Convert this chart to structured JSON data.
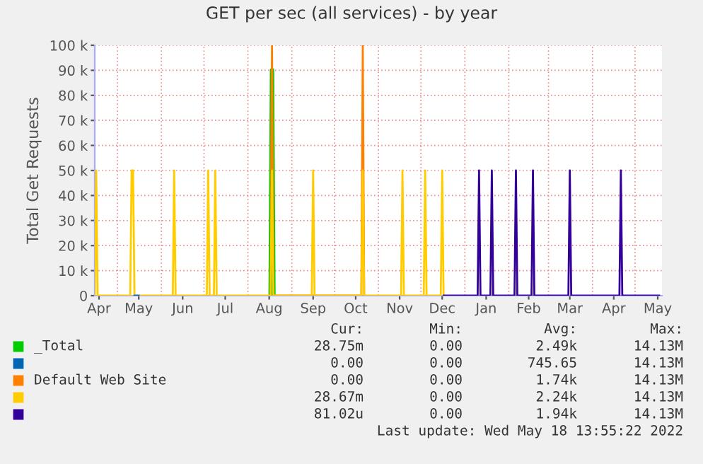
{
  "chart_data": {
    "type": "line",
    "title": "GET per sec (all services) - by year",
    "ylabel": "Total Get Requests",
    "xlim": [
      "2021-04-15",
      "2022-05-20"
    ],
    "xticks": [
      {
        "value": "2021-04-18",
        "label": "Apr"
      },
      {
        "value": "2021-05-16",
        "label": "May"
      },
      {
        "value": "2021-06-16",
        "label": "Jun"
      },
      {
        "value": "2021-07-16",
        "label": "Jul"
      },
      {
        "value": "2021-08-16",
        "label": "Aug"
      },
      {
        "value": "2021-09-16",
        "label": "Sep"
      },
      {
        "value": "2021-10-16",
        "label": "Oct"
      },
      {
        "value": "2021-11-16",
        "label": "Nov"
      },
      {
        "value": "2021-12-16",
        "label": "Dec"
      },
      {
        "value": "2022-01-16",
        "label": "Jan"
      },
      {
        "value": "2022-02-15",
        "label": "Feb"
      },
      {
        "value": "2022-03-16",
        "label": "Mar"
      },
      {
        "value": "2022-04-16",
        "label": "Apr"
      },
      {
        "value": "2022-05-17",
        "label": "May"
      },
      {
        "value": "2021-05-01",
        "label": null
      },
      {
        "value": "2021-06-01",
        "label": null
      },
      {
        "value": "2021-07-01",
        "label": null
      },
      {
        "value": "2021-08-01",
        "label": null
      },
      {
        "value": "2021-09-01",
        "label": null
      },
      {
        "value": "2021-10-01",
        "label": null
      },
      {
        "value": "2021-11-01",
        "label": null
      },
      {
        "value": "2021-12-01",
        "label": null
      },
      {
        "value": "2022-01-01",
        "label": null
      },
      {
        "value": "2022-02-01",
        "label": null
      },
      {
        "value": "2022-03-01",
        "label": null
      },
      {
        "value": "2022-04-01",
        "label": null
      },
      {
        "value": "2022-05-01",
        "label": null
      }
    ],
    "ylim": [
      0,
      100000
    ],
    "yticks": [
      {
        "value": 0,
        "label": "0"
      },
      {
        "value": 10000,
        "label": "10 k"
      },
      {
        "value": 20000,
        "label": "20 k"
      },
      {
        "value": 30000,
        "label": "30 k"
      },
      {
        "value": 40000,
        "label": "40 k"
      },
      {
        "value": 50000,
        "label": "50 k"
      },
      {
        "value": 60000,
        "label": "60 k"
      },
      {
        "value": 70000,
        "label": "70 k"
      },
      {
        "value": 80000,
        "label": "80 k"
      },
      {
        "value": 90000,
        "label": "90 k"
      },
      {
        "value": 100000,
        "label": "100 k"
      }
    ],
    "grid": true,
    "legend": "bottom",
    "marker": "none",
    "line_style": "solid",
    "series": [
      {
        "name": "_Total",
        "color": "#00cc00",
        "x": [
          "2021-08-17",
          "2021-08-18",
          "2021-08-19"
        ],
        "values": [
          0,
          90000,
          0
        ]
      },
      {
        "color": "#0066b3",
        "x": [
          "2021-05-13",
          "2021-05-16"
        ],
        "values": [
          0,
          0
        ]
      },
      {
        "name": "Default Web Site",
        "color": "#ff8000",
        "x": [
          "2021-08-17",
          "2021-08-18",
          "2021-08-19",
          "2021-10-20",
          "2021-10-21",
          "2021-10-22"
        ],
        "values": [
          0,
          100000,
          0,
          0,
          100000,
          0
        ]
      },
      {
        "color": "#ffcc00",
        "x": [
          "2021-04-15",
          "2021-04-16",
          "2021-04-17",
          "2021-05-10",
          "2021-05-11",
          "2021-05-12",
          "2021-05-13",
          "2021-06-09",
          "2021-06-10",
          "2021-06-11",
          "2021-07-03",
          "2021-07-04",
          "2021-07-05",
          "2021-07-08",
          "2021-07-09",
          "2021-07-10",
          "2021-08-17",
          "2021-08-18",
          "2021-08-19",
          "2021-09-15",
          "2021-09-16",
          "2021-09-17",
          "2021-10-20",
          "2021-10-21",
          "2021-10-22",
          "2021-11-17",
          "2021-11-18",
          "2021-11-19",
          "2021-12-03",
          "2021-12-04",
          "2021-12-05",
          "2021-12-15",
          "2021-12-16",
          "2021-12-17"
        ],
        "values": [
          0,
          50000,
          0,
          0,
          50000,
          50000,
          0,
          0,
          50000,
          0,
          0,
          50000,
          0,
          0,
          50000,
          0,
          0,
          50000,
          0,
          0,
          50000,
          0,
          0,
          50000,
          0,
          0,
          50000,
          0,
          0,
          50000,
          0,
          0,
          50000,
          0
        ]
      },
      {
        "color": "#330099",
        "x": [
          "2021-12-17",
          "2022-01-10",
          "2022-01-11",
          "2022-01-12",
          "2022-01-19",
          "2022-01-20",
          "2022-01-21",
          "2022-02-05",
          "2022-02-06",
          "2022-02-07",
          "2022-02-17",
          "2022-02-18",
          "2022-02-19",
          "2022-03-15",
          "2022-03-16",
          "2022-03-17",
          "2022-04-20",
          "2022-04-21",
          "2022-04-22",
          "2022-05-18"
        ],
        "values": [
          0,
          0,
          50000,
          0,
          0,
          50000,
          0,
          0,
          50000,
          0,
          0,
          50000,
          0,
          0,
          50000,
          0,
          0,
          50000,
          0,
          0
        ]
      }
    ],
    "annotations": [
      "Cur:",
      "Min:",
      "Avg:",
      "Max:",
      "28.75m",
      "0.00",
      "2.49k",
      "14.13M",
      "0.00",
      "0.00",
      "745.65",
      "14.13M",
      "0.00",
      "0.00",
      "1.74k",
      "14.13M",
      "28.67m",
      "0.00",
      "2.24k",
      "14.13M",
      "81.02u",
      "0.00",
      "1.94k",
      "14.13M",
      "Last update: Wed May 18 13:55:22 2022"
    ]
  }
}
